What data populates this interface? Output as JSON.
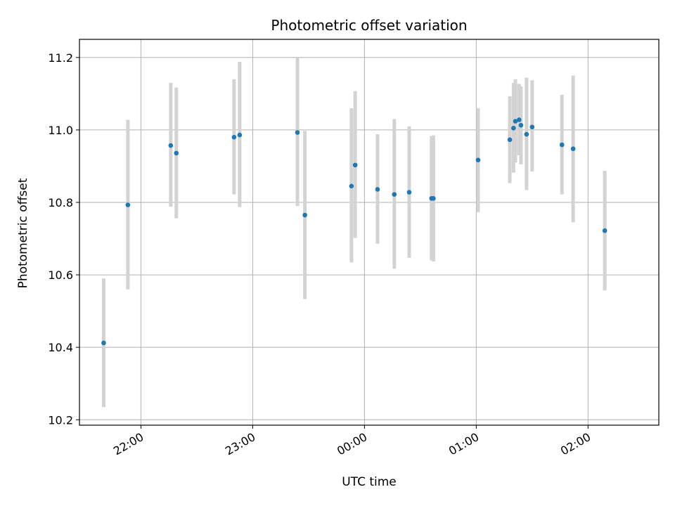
{
  "chart_data": {
    "type": "scatter",
    "title": "Photometric offset variation",
    "xlabel": "UTC time",
    "ylabel": "Photometric offset",
    "x_axis_type": "time",
    "xlim": [
      "21:27",
      "02:38"
    ],
    "ylim": [
      10.185,
      11.25
    ],
    "yticks": [
      10.2,
      10.4,
      10.6,
      10.8,
      11.0,
      11.2
    ],
    "ytick_labels": [
      "10.2",
      "10.4",
      "10.6",
      "10.8",
      "11.0",
      "11.2"
    ],
    "xticks": [
      "22:00",
      "23:00",
      "00:00",
      "01:00",
      "02:00"
    ],
    "grid": true,
    "point_color": "#1f77b4",
    "errorbar_color": "#d3d3d3",
    "points": [
      {
        "t": "21:40",
        "y": 10.412,
        "lo": 10.235,
        "hi": 10.59
      },
      {
        "t": "21:53",
        "y": 10.793,
        "lo": 10.56,
        "hi": 11.028
      },
      {
        "t": "22:16",
        "y": 10.957,
        "lo": 10.788,
        "hi": 11.13
      },
      {
        "t": "22:19",
        "y": 10.936,
        "lo": 10.756,
        "hi": 11.117
      },
      {
        "t": "22:50",
        "y": 10.98,
        "lo": 10.822,
        "hi": 11.14
      },
      {
        "t": "22:53",
        "y": 10.986,
        "lo": 10.787,
        "hi": 11.188
      },
      {
        "t": "23:24",
        "y": 10.993,
        "lo": 10.79,
        "hi": 11.2
      },
      {
        "t": "23:28",
        "y": 10.765,
        "lo": 10.533,
        "hi": 10.997
      },
      {
        "t": "23:53",
        "y": 10.845,
        "lo": 10.634,
        "hi": 11.06
      },
      {
        "t": "23:55",
        "y": 10.903,
        "lo": 10.702,
        "hi": 11.107
      },
      {
        "t": "00:07",
        "y": 10.836,
        "lo": 10.686,
        "hi": 10.988
      },
      {
        "t": "00:16",
        "y": 10.822,
        "lo": 10.617,
        "hi": 11.03
      },
      {
        "t": "00:24",
        "y": 10.828,
        "lo": 10.647,
        "hi": 11.01
      },
      {
        "t": "00:36",
        "y": 10.811,
        "lo": 10.64,
        "hi": 10.983
      },
      {
        "t": "00:37",
        "y": 10.811,
        "lo": 10.637,
        "hi": 10.985
      },
      {
        "t": "01:01",
        "y": 10.917,
        "lo": 10.773,
        "hi": 11.06
      },
      {
        "t": "01:18",
        "y": 10.973,
        "lo": 10.853,
        "hi": 11.093
      },
      {
        "t": "01:20",
        "y": 11.005,
        "lo": 10.882,
        "hi": 11.13
      },
      {
        "t": "01:21",
        "y": 11.024,
        "lo": 10.91,
        "hi": 11.14
      },
      {
        "t": "01:23",
        "y": 11.028,
        "lo": 10.93,
        "hi": 11.127
      },
      {
        "t": "01:24",
        "y": 11.013,
        "lo": 10.905,
        "hi": 11.12
      },
      {
        "t": "01:27",
        "y": 10.988,
        "lo": 10.834,
        "hi": 11.144
      },
      {
        "t": "01:30",
        "y": 11.008,
        "lo": 10.885,
        "hi": 11.137
      },
      {
        "t": "01:46",
        "y": 10.959,
        "lo": 10.822,
        "hi": 11.097
      },
      {
        "t": "01:52",
        "y": 10.948,
        "lo": 10.745,
        "hi": 11.15
      },
      {
        "t": "02:09",
        "y": 10.722,
        "lo": 10.557,
        "hi": 10.887
      }
    ]
  }
}
